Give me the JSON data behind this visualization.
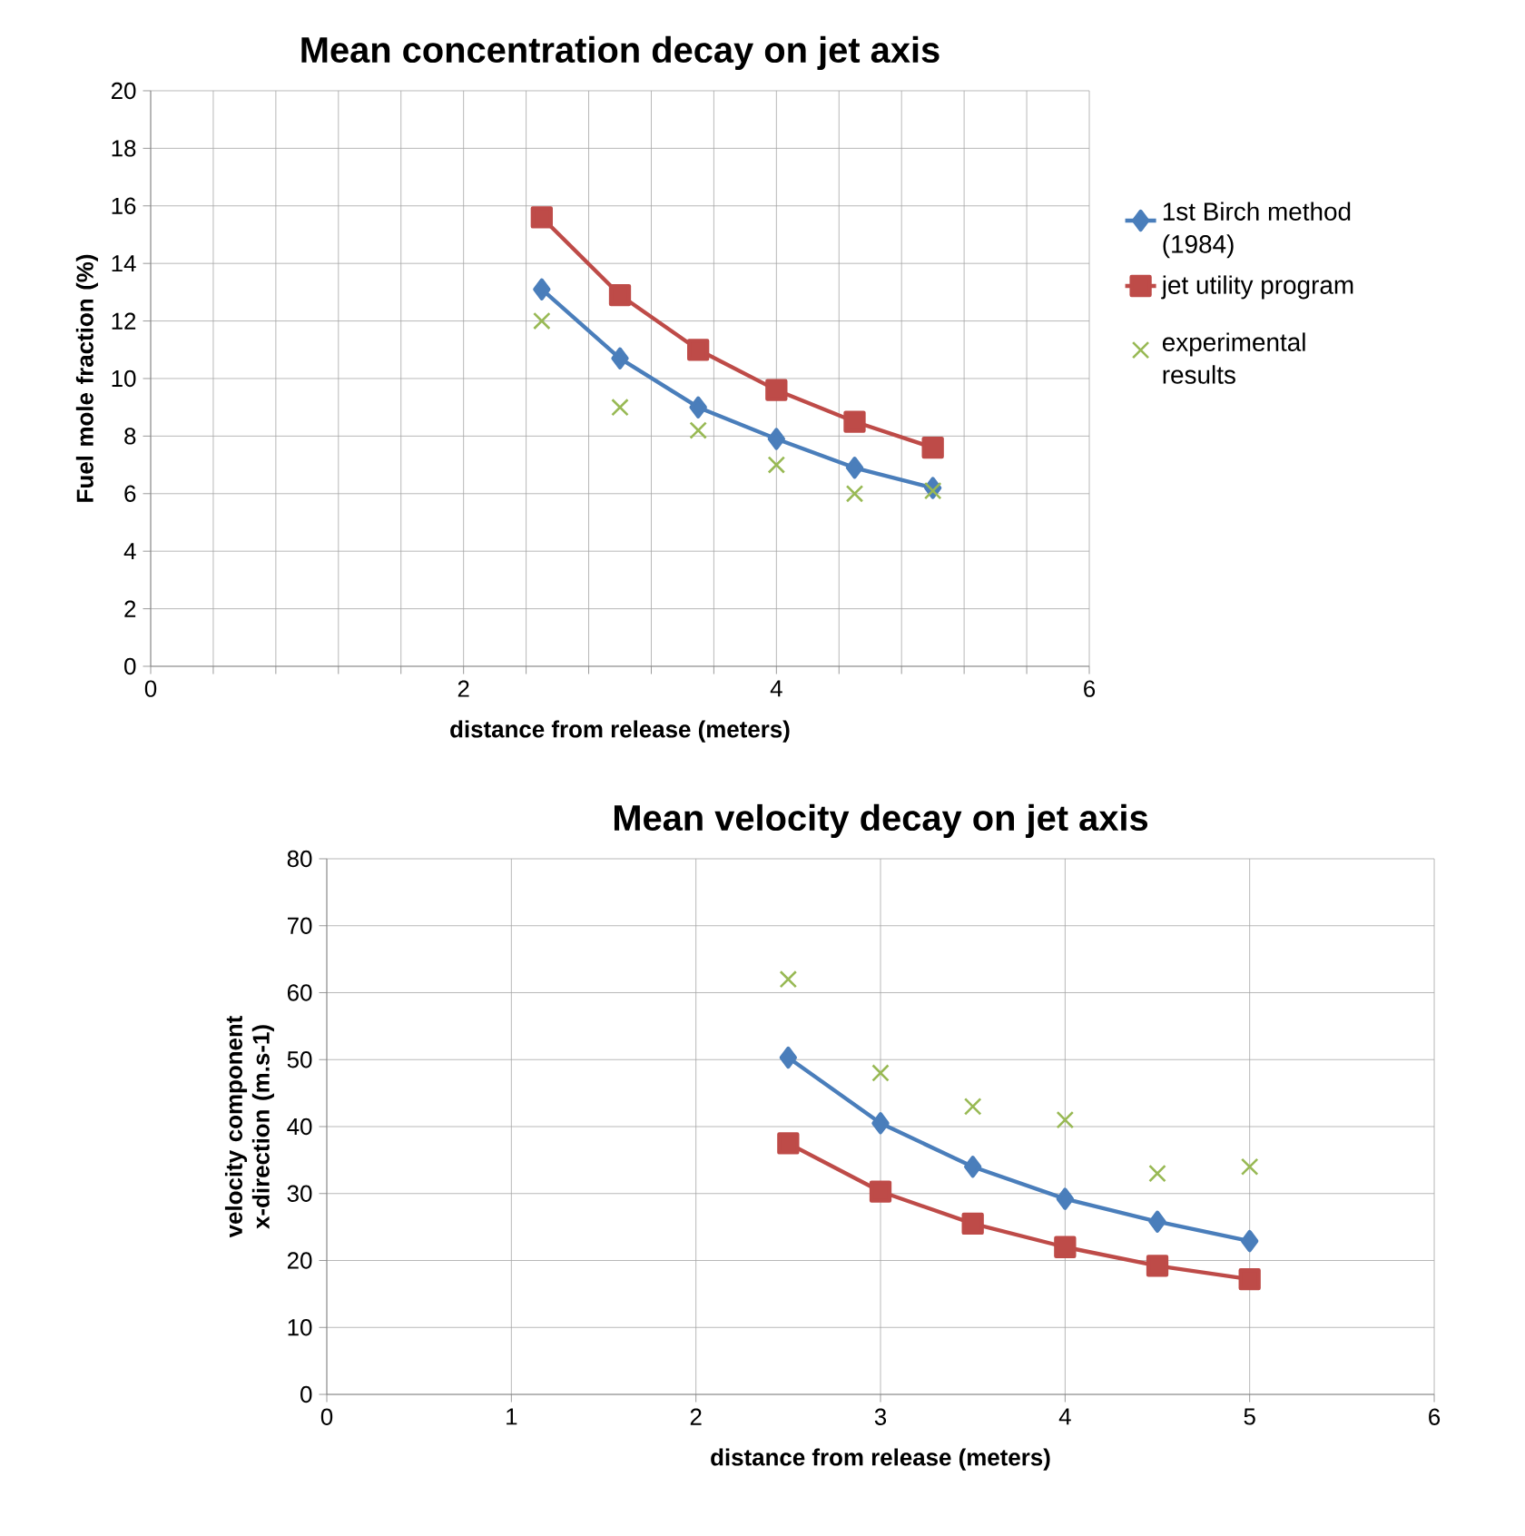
{
  "chart_data": [
    {
      "type": "line",
      "title": "Mean concentration decay on jet axis",
      "xlabel": "distance from release (meters)",
      "ylabel": "Fuel mole fraction (%)",
      "xlim": [
        0,
        6
      ],
      "xticks": [
        0,
        {
          "value": 0.4,
          "label": null
        },
        {
          "value": 0.8,
          "label": null
        },
        {
          "value": 1.2,
          "label": null
        },
        {
          "value": 1.6,
          "label": null
        },
        2,
        {
          "value": 2.4,
          "label": null
        },
        {
          "value": 2.8,
          "label": null
        },
        {
          "value": 3.2,
          "label": null
        },
        {
          "value": 3.6,
          "label": null
        },
        4,
        {
          "value": 4.4,
          "label": null
        },
        {
          "value": 4.8,
          "label": null
        },
        {
          "value": 5.2,
          "label": null
        },
        {
          "value": 5.6,
          "label": null
        },
        6
      ],
      "ylim": [
        0,
        20
      ],
      "yticks": [
        0,
        2,
        4,
        6,
        8,
        10,
        12,
        14,
        16,
        18,
        20
      ],
      "grid": true,
      "legend": "right",
      "series": [
        {
          "name": "1st Birch method (1984)",
          "marker": "diamond",
          "color": "#4a7ebb",
          "x": [
            2.5,
            3,
            3.5,
            4,
            4.5,
            5
          ],
          "values": [
            13.1,
            10.7,
            9.0,
            7.9,
            6.9,
            6.2
          ]
        },
        {
          "name": "jet utility program",
          "marker": "square",
          "color": "#be4b48",
          "x": [
            2.5,
            3,
            3.5,
            4,
            4.5,
            5
          ],
          "values": [
            15.6,
            12.9,
            11.0,
            9.6,
            8.5,
            7.6
          ]
        },
        {
          "name": "experimental results",
          "type": "scatter",
          "marker": "cross",
          "color": "#98b954",
          "x": [
            2.5,
            3,
            3.5,
            4,
            4.5,
            5
          ],
          "values": [
            12.0,
            9.0,
            8.2,
            7.0,
            6.0,
            6.1
          ]
        }
      ]
    },
    {
      "type": "line",
      "title": "Mean velocity decay on jet axis",
      "xlabel": "distance from release (meters)",
      "ylabel": "velocity component x-direction (m.s-1)",
      "xlim": [
        0,
        6
      ],
      "xticks": [
        0,
        1,
        2,
        3,
        4,
        5,
        6
      ],
      "ylim": [
        0,
        80
      ],
      "yticks": [
        0,
        10,
        20,
        30,
        40,
        50,
        60,
        70,
        80
      ],
      "grid": true,
      "series": [
        {
          "marker": "diamond",
          "color": "#4a7ebb",
          "x": [
            2.5,
            3,
            3.5,
            4,
            4.5,
            5
          ],
          "values": [
            50.3,
            40.5,
            34.0,
            29.2,
            25.8,
            22.9
          ]
        },
        {
          "marker": "square",
          "color": "#be4b48",
          "x": [
            2.5,
            3,
            3.5,
            4,
            4.5,
            5
          ],
          "values": [
            37.5,
            30.3,
            25.5,
            22.0,
            19.2,
            17.2
          ]
        },
        {
          "type": "scatter",
          "marker": "cross",
          "color": "#98b954",
          "x": [
            2.5,
            3,
            3.5,
            4,
            4.5,
            5
          ],
          "values": [
            62,
            48,
            43,
            41,
            33,
            34
          ]
        }
      ]
    }
  ]
}
